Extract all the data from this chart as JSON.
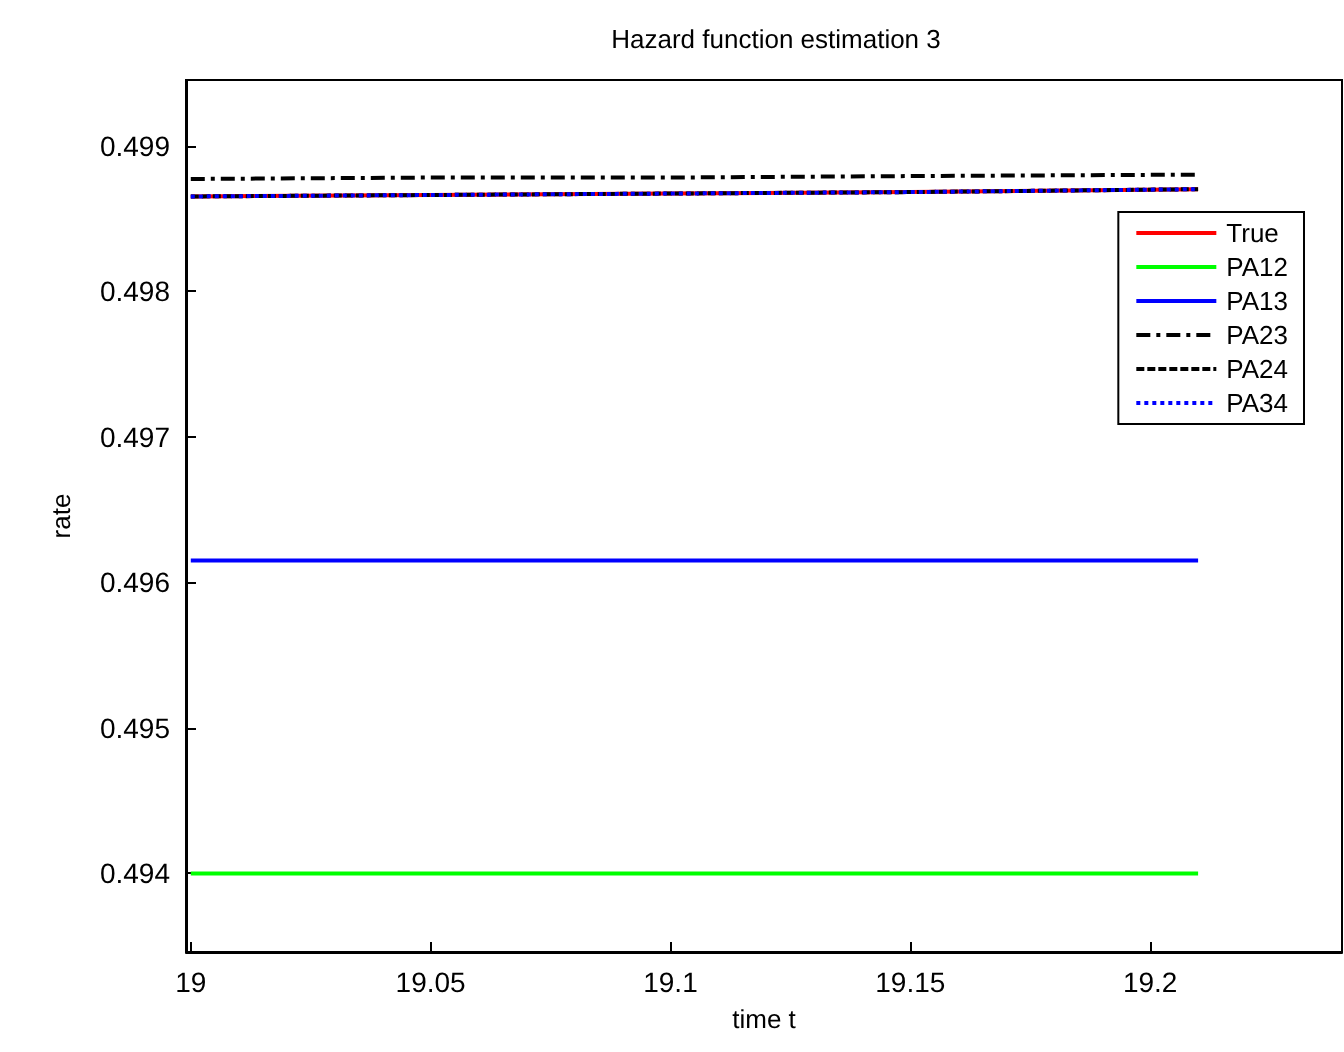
{
  "chart_data": {
    "type": "line",
    "title": "Hazard function estimation 3",
    "xlabel": "time t",
    "ylabel": "rate",
    "x": [
      19,
      19.05,
      19.1,
      19.15,
      19.21
    ],
    "series": [
      {
        "name": "True",
        "color": "#ff0000",
        "line_style": "solid",
        "values": [
          0.49865,
          0.49866,
          0.49867,
          0.49868,
          0.4987
        ]
      },
      {
        "name": "PA12",
        "color": "#00ff00",
        "line_style": "solid",
        "values": [
          0.494,
          0.494,
          0.494,
          0.494,
          0.494
        ]
      },
      {
        "name": "PA13",
        "color": "#0000ff",
        "line_style": "solid",
        "values": [
          0.49615,
          0.49615,
          0.49615,
          0.49615,
          0.49615
        ]
      },
      {
        "name": "PA23",
        "color": "#000000",
        "line_style": "dashdot",
        "values": [
          0.49877,
          0.49878,
          0.49878,
          0.49879,
          0.4988
        ]
      },
      {
        "name": "PA24",
        "color": "#000000",
        "line_style": "dashed",
        "values": [
          0.49865,
          0.49866,
          0.49867,
          0.49868,
          0.4987
        ]
      },
      {
        "name": "PA34",
        "color": "#0000ff",
        "line_style": "dotted",
        "values": [
          0.49865,
          0.49866,
          0.49867,
          0.49868,
          0.4987
        ]
      }
    ],
    "xlim": [
      18.999,
      19.24
    ],
    "xticks": [
      19,
      19.05,
      19.1,
      19.15,
      19.2
    ],
    "ylim": [
      0.49346,
      0.49945
    ],
    "yticks": [
      0.494,
      0.495,
      0.496,
      0.497,
      0.498,
      0.499
    ],
    "grid": false,
    "legend": "top right",
    "marker": "none"
  }
}
